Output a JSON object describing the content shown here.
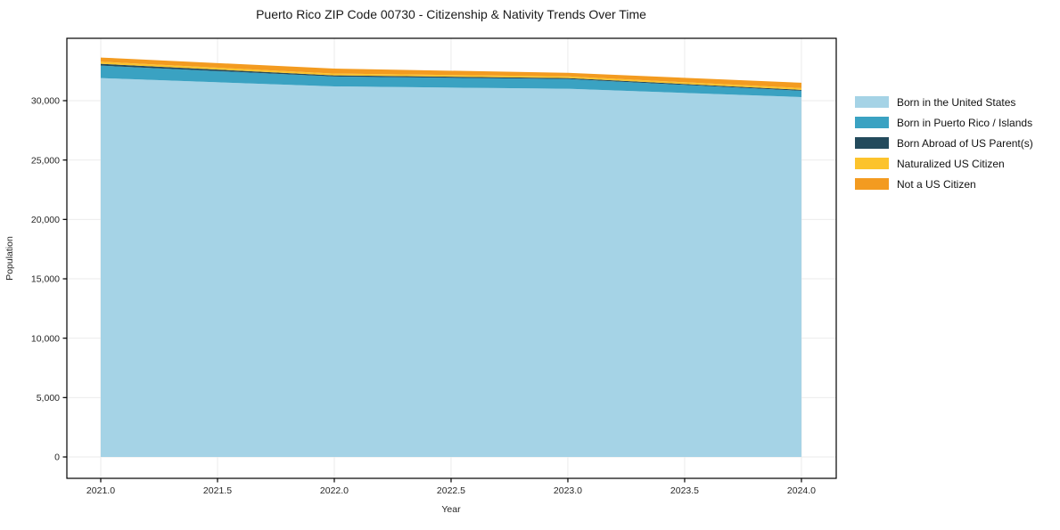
{
  "chart_data": {
    "type": "area",
    "stacked": true,
    "title": "Puerto Rico ZIP Code 00730 - Citizenship & Nativity Trends Over Time",
    "xlabel": "Year",
    "ylabel": "Population",
    "x": [
      2021,
      2022,
      2023,
      2024
    ],
    "series": [
      {
        "name": "Born in the United States",
        "color": "#a5d3e6",
        "values": [
          31900,
          31200,
          31000,
          30300
        ]
      },
      {
        "name": "Born in Puerto Rico / Islands",
        "color": "#3aa2c2",
        "values": [
          1050,
          830,
          820,
          530
        ]
      },
      {
        "name": "Born Abroad of US Parent(s)",
        "color": "#234a5c",
        "values": [
          150,
          100,
          80,
          80
        ]
      },
      {
        "name": "Naturalized US Citizen",
        "color": "#fcc32c",
        "values": [
          180,
          150,
          140,
          150
        ]
      },
      {
        "name": "Not a US Citizen",
        "color": "#f39b20",
        "values": [
          350,
          420,
          300,
          450
        ]
      }
    ],
    "xticks": [
      2021.0,
      2021.5,
      2022.0,
      2022.5,
      2023.0,
      2023.5,
      2024.0
    ],
    "xtick_labels": [
      "2021.0",
      "2021.5",
      "2022.0",
      "2022.5",
      "2023.0",
      "2023.5",
      "2024.0"
    ],
    "yticks": [
      0,
      5000,
      10000,
      15000,
      20000,
      25000,
      30000
    ],
    "ytick_labels": [
      "0",
      "5,000",
      "10,000",
      "15,000",
      "20,000",
      "25,000",
      "30,000"
    ],
    "xlim": [
      2020.855,
      2024.149
    ],
    "ylim": [
      -1800,
      35250
    ],
    "grid": true,
    "grid_color": "#ebebeb",
    "spine_color": "#000000",
    "legend_position": "right"
  }
}
